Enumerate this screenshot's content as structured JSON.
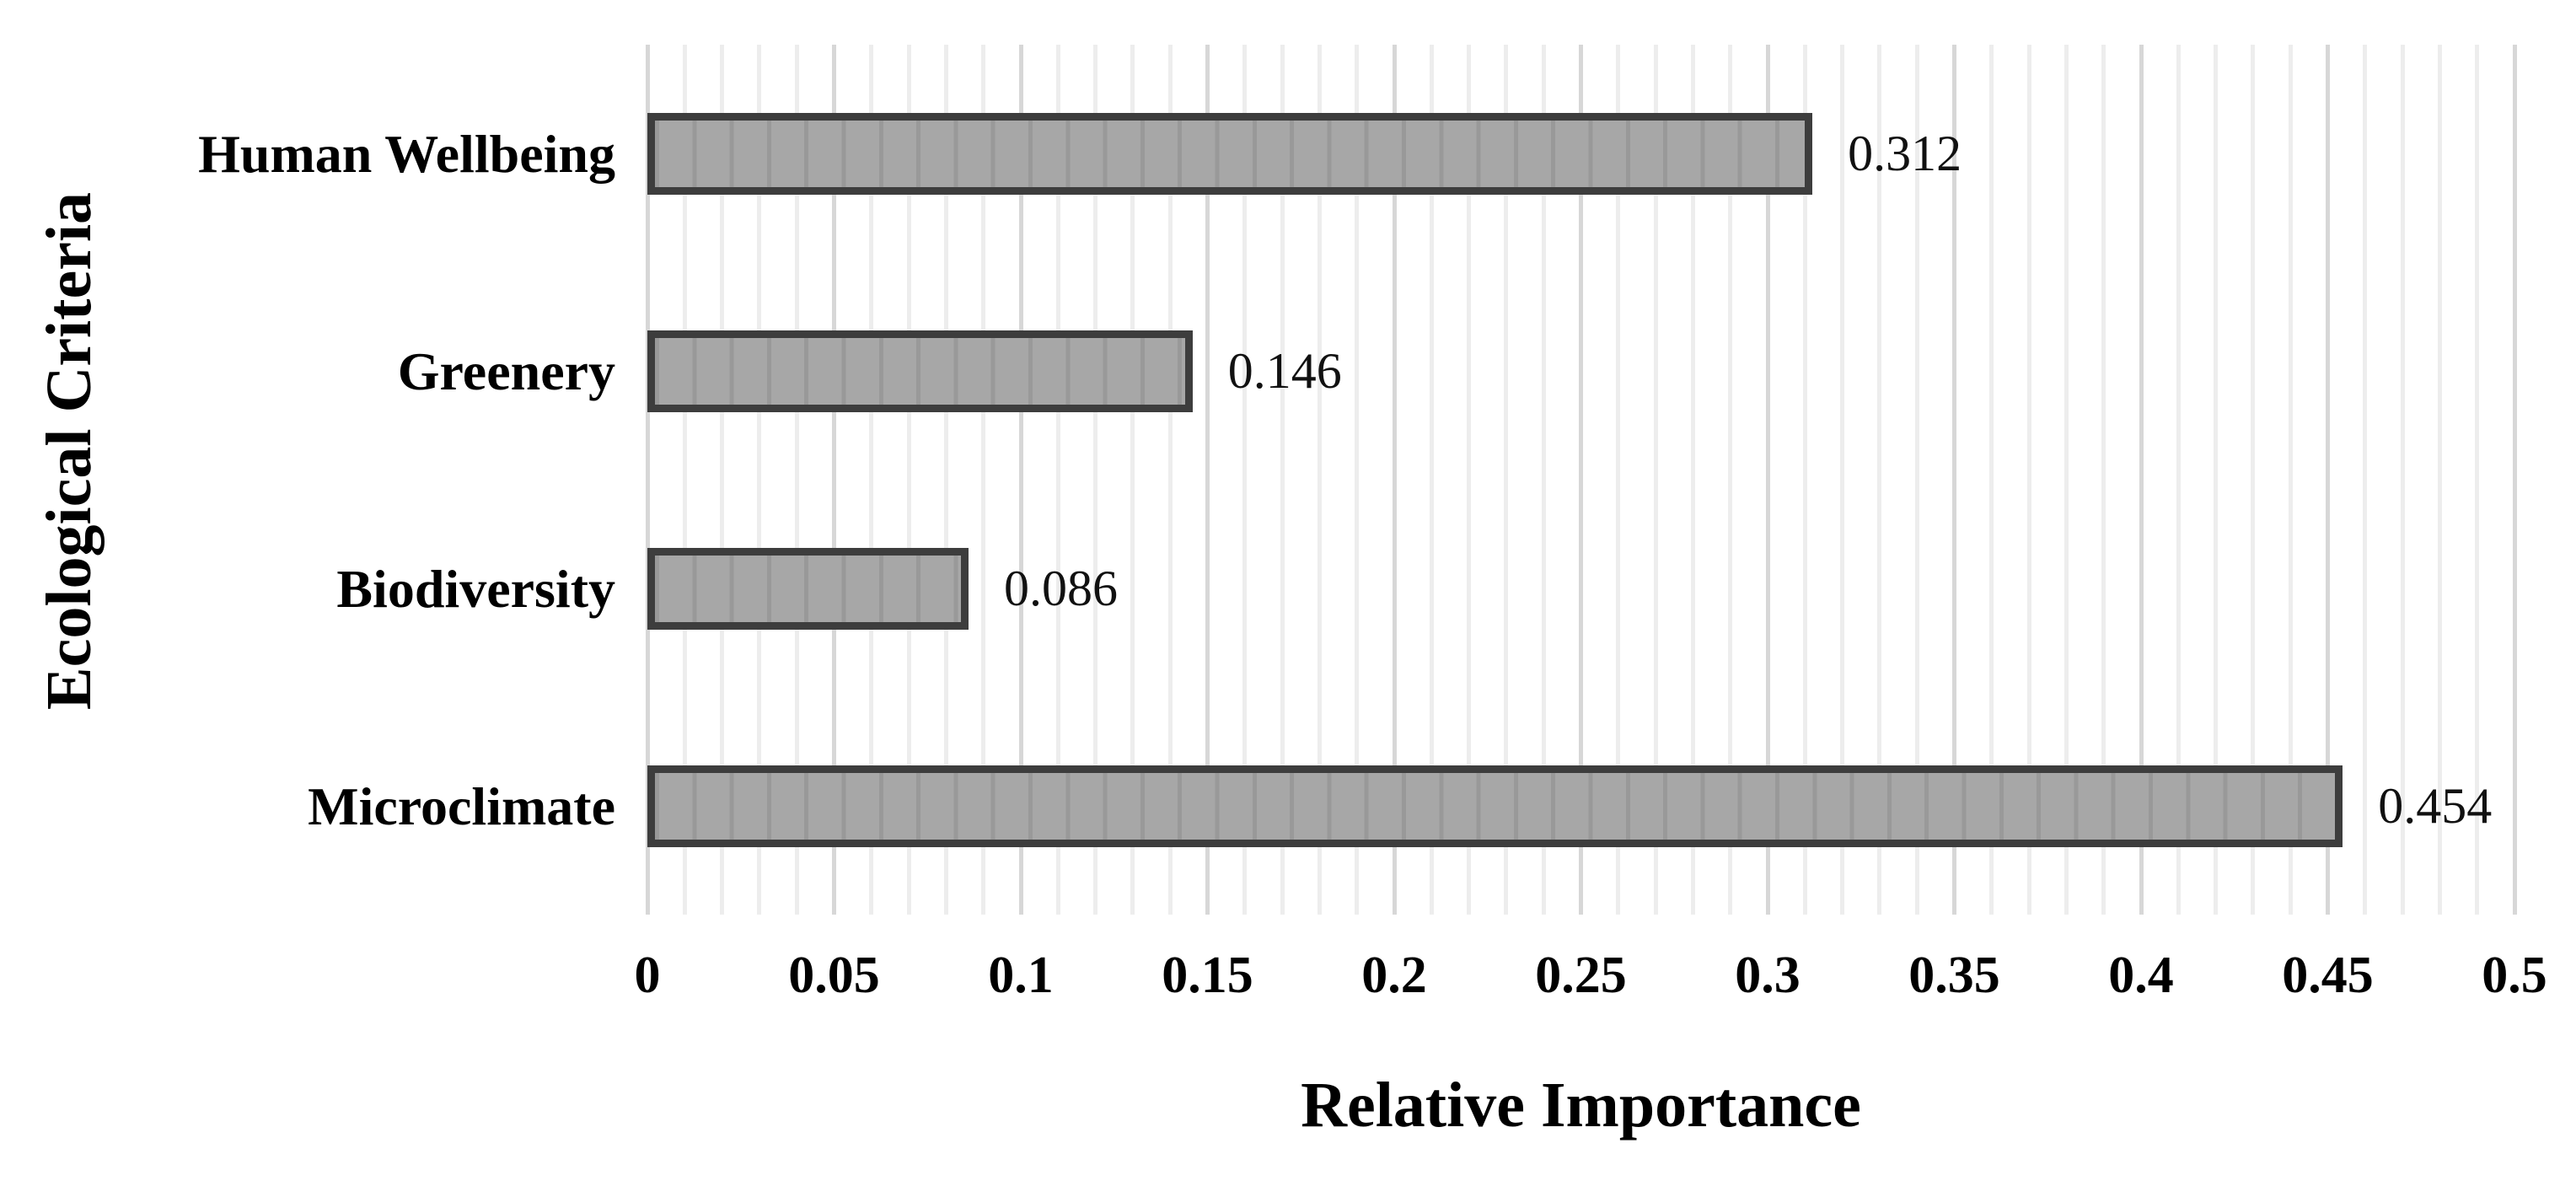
{
  "chart_data": {
    "type": "bar",
    "orientation": "horizontal",
    "title": "",
    "xlabel": "Relative Importance",
    "ylabel": "Ecological Criteria",
    "categories": [
      "Human Wellbeing",
      "Greenery",
      "Biodiversity",
      "Microclimate"
    ],
    "values": [
      0.312,
      0.146,
      0.086,
      0.454
    ],
    "value_labels": [
      "0.312",
      "0.146",
      "0.086",
      "0.454"
    ],
    "xlim": [
      0,
      0.5
    ],
    "x_ticks": [
      "0",
      "0.05",
      "0.1",
      "0.15",
      "0.2",
      "0.25",
      "0.3",
      "0.35",
      "0.4",
      "0.45",
      "0.5"
    ],
    "x_tick_values": [
      0,
      0.05,
      0.1,
      0.15,
      0.2,
      0.25,
      0.3,
      0.35,
      0.4,
      0.45,
      0.5
    ],
    "grid": {
      "vertical_minor_step": 0.01,
      "vertical_major_step": 0.05,
      "horizontal": false
    },
    "legend": "none",
    "colors": {
      "bar_fill": "#a7a7a7",
      "bar_border": "#3d3d3d",
      "grid_minor": "#ededed",
      "grid_major": "#d7d7d7",
      "text": "#000000",
      "background": "#ffffff"
    }
  }
}
